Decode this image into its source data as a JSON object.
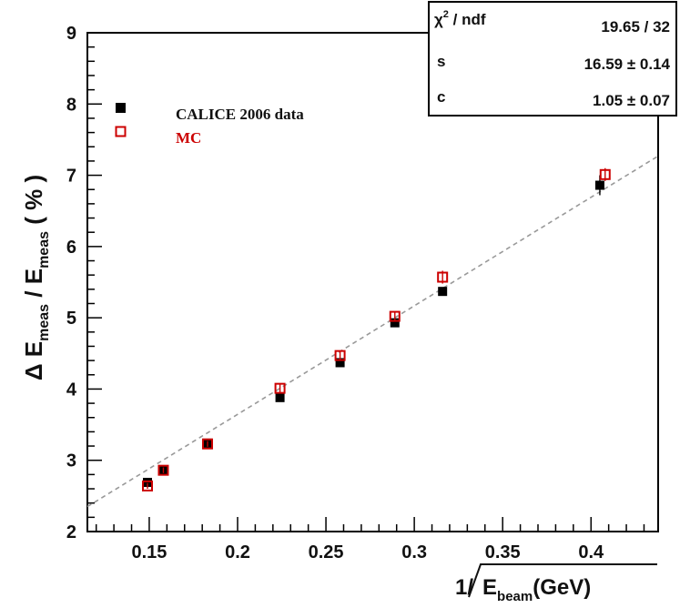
{
  "chart_data": {
    "type": "scatter",
    "xlabel": {
      "prefix": "1/",
      "main": "E",
      "sub": "beam",
      "unit": "(GeV)"
    },
    "ylabel": {
      "prefix": "Δ E",
      "sub1": "meas",
      "mid": " / E",
      "sub2": "meas",
      "unit": " ( % )"
    },
    "xlim": [
      0.115,
      0.438
    ],
    "ylim": [
      2,
      9
    ],
    "xticks": [
      0.15,
      0.2,
      0.25,
      0.3,
      0.35,
      0.4
    ],
    "xtick_labels": [
      "0.15",
      "0.2",
      "0.25",
      "0.3",
      "0.35",
      "0.4"
    ],
    "yticks": [
      2,
      3,
      4,
      5,
      6,
      7,
      8,
      9
    ],
    "ytick_labels": [
      "2",
      "3",
      "4",
      "5",
      "6",
      "7",
      "8",
      "9"
    ],
    "grid": false,
    "legend_position": "top-left",
    "series": [
      {
        "name": "CALICE 2006 data",
        "marker": "filled-square",
        "color": "#000000",
        "x": [
          0.149,
          0.158,
          0.183,
          0.224,
          0.258,
          0.289,
          0.316,
          0.405
        ],
        "y": [
          2.69,
          2.86,
          3.24,
          3.88,
          4.37,
          4.93,
          5.37,
          6.86
        ],
        "yerr": [
          0.03,
          0.03,
          0.03,
          0.04,
          0.04,
          0.05,
          0.05,
          0.14
        ]
      },
      {
        "name": "MC",
        "marker": "open-square",
        "color": "#cc0000",
        "x": [
          0.149,
          0.158,
          0.183,
          0.224,
          0.258,
          0.289,
          0.316,
          0.408
        ],
        "y": [
          2.64,
          2.86,
          3.23,
          4.01,
          4.47,
          5.02,
          5.57,
          7.01
        ],
        "yerr": [
          0.04,
          0.04,
          0.04,
          0.06,
          0.06,
          0.07,
          0.09,
          0.09
        ]
      }
    ],
    "fit": {
      "style": "dashed",
      "color": "#999999",
      "x": [
        0.115,
        0.438
      ],
      "y": [
        2.35,
        7.27
      ]
    },
    "stats_box": [
      {
        "label_main": "χ",
        "label_sup": "2",
        "label_rest": " / ndf",
        "value": "19.65 / 32"
      },
      {
        "label_main": "s",
        "label_sup": "",
        "label_rest": "",
        "value": "16.59 ± 0.14"
      },
      {
        "label_main": "c",
        "label_sup": "",
        "label_rest": "",
        "value": "1.05 ± 0.07"
      }
    ]
  }
}
